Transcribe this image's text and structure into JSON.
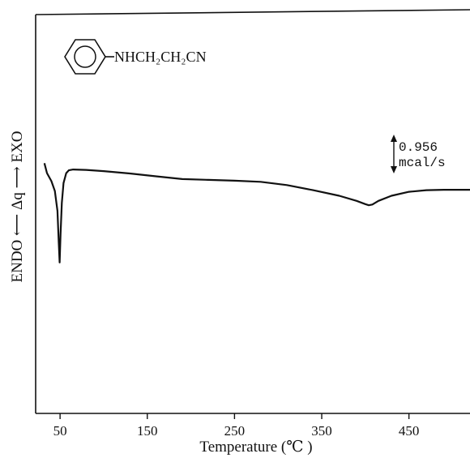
{
  "chart_data": {
    "type": "line",
    "title": "",
    "xlabel": "Temperature (℃ )",
    "ylabel": "ENDO ⟵ Δq ⟶ EXO",
    "xlim": [
      22,
      520
    ],
    "ylim": [
      0,
      1
    ],
    "x_ticks": [
      50,
      150,
      250,
      350,
      450
    ],
    "x_tick_labels": [
      "50",
      "150",
      "250",
      "350",
      "450"
    ],
    "grid": false,
    "annotations": {
      "compound_formula": "NHCH₂CH₂CN",
      "compound_ring": "phenyl",
      "scale_bar_value": "0.956",
      "scale_bar_unit": "mcal/s"
    },
    "series": [
      {
        "x": [
          32,
          35,
          40,
          44,
          47,
          48.5,
          49.5,
          50.5,
          52,
          54,
          57,
          60,
          65,
          80,
          100,
          130,
          160,
          190,
          220,
          250,
          280,
          310,
          340,
          370,
          390,
          400,
          404,
          408,
          415,
          430,
          450,
          470,
          490,
          520
        ],
        "y": [
          0.63,
          0.605,
          0.585,
          0.56,
          0.51,
          0.43,
          0.38,
          0.45,
          0.53,
          0.58,
          0.605,
          0.612,
          0.614,
          0.613,
          0.61,
          0.604,
          0.597,
          0.59,
          0.588,
          0.586,
          0.583,
          0.575,
          0.562,
          0.548,
          0.535,
          0.527,
          0.524,
          0.526,
          0.535,
          0.548,
          0.558,
          0.562,
          0.563,
          0.563
        ]
      }
    ]
  },
  "colors": {
    "line": "#111111",
    "axis": "#111111",
    "background": "#ffffff"
  }
}
